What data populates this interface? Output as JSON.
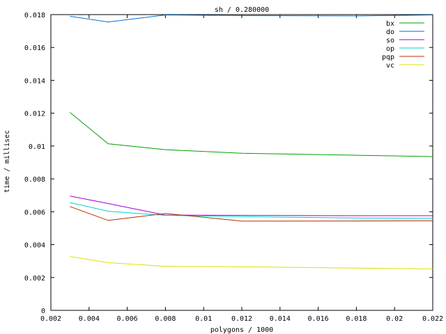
{
  "chart_data": {
    "type": "line",
    "title": "sh / 0.280000",
    "xlabel": "polygons / 1000",
    "ylabel": "time / millisec",
    "xlim": [
      0.002,
      0.022
    ],
    "ylim": [
      0,
      0.018
    ],
    "xticks": [
      0.002,
      0.004,
      0.006,
      0.008,
      0.01,
      0.012,
      0.014,
      0.016,
      0.018,
      0.02,
      0.022
    ],
    "yticks": [
      0,
      0.002,
      0.004,
      0.006,
      0.008,
      0.01,
      0.012,
      0.014,
      0.016,
      0.018
    ],
    "xtick_labels": [
      "0.002",
      "0.004",
      "0.006",
      "0.008",
      "0.01",
      "0.012",
      "0.014",
      "0.016",
      "0.018",
      "0.02",
      "0.022"
    ],
    "ytick_labels": [
      "0",
      "0.002",
      "0.004",
      "0.006",
      "0.008",
      "0.01",
      "0.012",
      "0.014",
      "0.016",
      "0.018"
    ],
    "grid": false,
    "legend_position": "top-right",
    "series": [
      {
        "name": "bx",
        "color": "#00a000",
        "x": [
          0.003,
          0.005,
          0.008,
          0.012,
          0.018,
          0.022
        ],
        "y": [
          0.01205,
          0.01014,
          0.00978,
          0.00956,
          0.00944,
          0.00936
        ]
      },
      {
        "name": "do",
        "color": "#0070d0",
        "x": [
          0.003,
          0.005,
          0.008,
          0.012,
          0.018,
          0.022
        ],
        "y": [
          0.0179,
          0.01755,
          0.01798,
          0.01794,
          0.01792,
          0.01798
        ]
      },
      {
        "name": "so",
        "color": "#a000d0",
        "x": [
          0.003,
          0.005,
          0.008,
          0.012,
          0.018,
          0.022
        ],
        "y": [
          0.00696,
          0.0065,
          0.0058,
          0.00578,
          0.00576,
          0.00576
        ]
      },
      {
        "name": "op",
        "color": "#00d0d0",
        "x": [
          0.003,
          0.005,
          0.008,
          0.012,
          0.018,
          0.022
        ],
        "y": [
          0.00656,
          0.00603,
          0.00578,
          0.0057,
          0.00562,
          0.0056
        ]
      },
      {
        "name": "pqp",
        "color": "#b03000",
        "x": [
          0.003,
          0.005,
          0.008,
          0.012,
          0.018,
          0.022
        ],
        "y": [
          0.00632,
          0.00547,
          0.0059,
          0.00543,
          0.00544,
          0.00545
        ]
      },
      {
        "name": "vc",
        "color": "#e0e000",
        "x": [
          0.003,
          0.005,
          0.008,
          0.012,
          0.018,
          0.022
        ],
        "y": [
          0.00328,
          0.0029,
          0.00268,
          0.00265,
          0.00257,
          0.00252
        ]
      }
    ]
  }
}
